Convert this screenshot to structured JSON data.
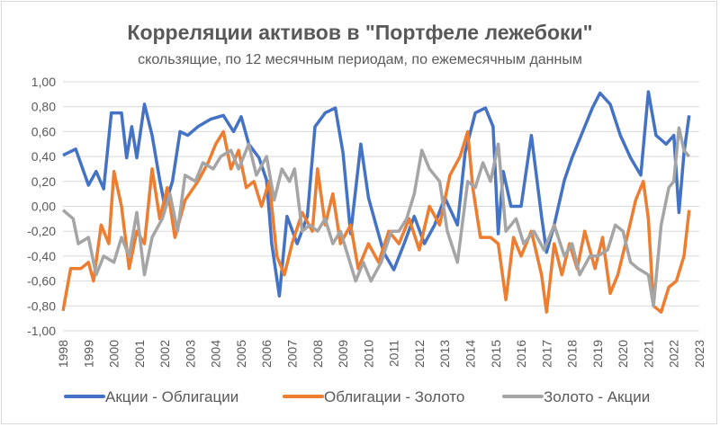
{
  "chart_data": {
    "type": "line",
    "title": "Корреляции активов в \"Портфеле лежебоки\"",
    "subtitle": "скользящие, по 12 месячным периодам, по ежемесячным данным",
    "xlabel": "",
    "ylabel": "",
    "ylim": [
      -1,
      1
    ],
    "xlim": [
      1998,
      2023
    ],
    "yticks": [
      "1,00",
      "0,80",
      "0,60",
      "0,40",
      "0,20",
      "0,00",
      "-0,20",
      "-0,40",
      "-0,60",
      "-0,80",
      "-1,00"
    ],
    "ytick_values": [
      1,
      0.8,
      0.6,
      0.4,
      0.2,
      0,
      -0.2,
      -0.4,
      -0.6,
      -0.8,
      -1
    ],
    "xticks": [
      "1998",
      "1999",
      "2000",
      "2001",
      "2002",
      "2003",
      "2004",
      "2005",
      "2006",
      "2007",
      "2008",
      "2009",
      "2010",
      "2011",
      "2012",
      "2013",
      "2014",
      "2015",
      "2016",
      "2017",
      "2018",
      "2019",
      "2020",
      "2021",
      "2022",
      "2023"
    ],
    "grid": true,
    "legend_position": "bottom",
    "series": [
      {
        "name": "Акции - Облигации",
        "color": "#4472c4",
        "points": [
          [
            1998.0,
            0.41
          ],
          [
            1998.5,
            0.46
          ],
          [
            1999.0,
            0.17
          ],
          [
            1999.3,
            0.28
          ],
          [
            1999.6,
            0.14
          ],
          [
            1999.9,
            0.75
          ],
          [
            2000.3,
            0.75
          ],
          [
            2000.5,
            0.39
          ],
          [
            2000.7,
            0.64
          ],
          [
            2000.9,
            0.39
          ],
          [
            2001.2,
            0.82
          ],
          [
            2001.5,
            0.57
          ],
          [
            2001.8,
            0.21
          ],
          [
            2002.0,
            0.0
          ],
          [
            2002.3,
            0.2
          ],
          [
            2002.6,
            0.6
          ],
          [
            2002.9,
            0.57
          ],
          [
            2003.3,
            0.64
          ],
          [
            2003.8,
            0.7
          ],
          [
            2004.3,
            0.73
          ],
          [
            2004.7,
            0.6
          ],
          [
            2005.0,
            0.72
          ],
          [
            2005.3,
            0.5
          ],
          [
            2005.7,
            0.39
          ],
          [
            2006.0,
            0.21
          ],
          [
            2006.2,
            -0.3
          ],
          [
            2006.5,
            -0.72
          ],
          [
            2006.8,
            -0.08
          ],
          [
            2007.2,
            -0.3
          ],
          [
            2007.6,
            -0.08
          ],
          [
            2007.9,
            0.64
          ],
          [
            2008.3,
            0.75
          ],
          [
            2008.7,
            0.79
          ],
          [
            2009.0,
            0.43
          ],
          [
            2009.3,
            -0.22
          ],
          [
            2009.7,
            0.5
          ],
          [
            2010.0,
            0.07
          ],
          [
            2010.3,
            -0.15
          ],
          [
            2010.6,
            -0.37
          ],
          [
            2011.0,
            -0.51
          ],
          [
            2011.4,
            -0.3
          ],
          [
            2011.8,
            -0.08
          ],
          [
            2012.2,
            -0.3
          ],
          [
            2012.6,
            -0.15
          ],
          [
            2013.0,
            0.07
          ],
          [
            2013.5,
            -0.15
          ],
          [
            2013.8,
            0.43
          ],
          [
            2014.2,
            0.75
          ],
          [
            2014.6,
            0.79
          ],
          [
            2014.9,
            0.64
          ],
          [
            2015.1,
            -0.22
          ],
          [
            2015.3,
            0.28
          ],
          [
            2015.6,
            0.0
          ],
          [
            2016.0,
            0.0
          ],
          [
            2016.4,
            0.57
          ],
          [
            2016.8,
            -0.08
          ],
          [
            2017.0,
            -0.37
          ],
          [
            2017.3,
            -0.15
          ],
          [
            2017.7,
            0.21
          ],
          [
            2018.0,
            0.39
          ],
          [
            2018.5,
            0.64
          ],
          [
            2018.8,
            0.79
          ],
          [
            2019.1,
            0.91
          ],
          [
            2019.5,
            0.82
          ],
          [
            2019.9,
            0.57
          ],
          [
            2020.3,
            0.39
          ],
          [
            2020.7,
            0.25
          ],
          [
            2021.0,
            0.92
          ],
          [
            2021.3,
            0.57
          ],
          [
            2021.7,
            0.5
          ],
          [
            2022.0,
            0.57
          ],
          [
            2022.2,
            -0.05
          ],
          [
            2022.4,
            0.43
          ],
          [
            2022.6,
            0.73
          ]
        ]
      },
      {
        "name": "Облигации - Золото",
        "color": "#ed7d31",
        "points": [
          [
            1998.0,
            -0.84
          ],
          [
            1998.3,
            -0.5
          ],
          [
            1998.7,
            -0.5
          ],
          [
            1999.0,
            -0.45
          ],
          [
            1999.2,
            -0.6
          ],
          [
            1999.5,
            -0.15
          ],
          [
            1999.8,
            -0.3
          ],
          [
            2000.0,
            0.28
          ],
          [
            2000.3,
            0.0
          ],
          [
            2000.6,
            -0.5
          ],
          [
            2000.9,
            -0.2
          ],
          [
            2001.2,
            -0.3
          ],
          [
            2001.5,
            0.3
          ],
          [
            2001.8,
            -0.1
          ],
          [
            2002.1,
            0.15
          ],
          [
            2002.4,
            -0.25
          ],
          [
            2002.8,
            0.05
          ],
          [
            2003.3,
            0.2
          ],
          [
            2003.7,
            0.35
          ],
          [
            2004.0,
            0.5
          ],
          [
            2004.3,
            0.6
          ],
          [
            2004.6,
            0.3
          ],
          [
            2004.9,
            0.45
          ],
          [
            2005.2,
            0.15
          ],
          [
            2005.5,
            0.2
          ],
          [
            2005.8,
            0.0
          ],
          [
            2006.1,
            0.2
          ],
          [
            2006.4,
            -0.4
          ],
          [
            2006.7,
            -0.55
          ],
          [
            2007.0,
            -0.3
          ],
          [
            2007.4,
            -0.05
          ],
          [
            2007.8,
            -0.2
          ],
          [
            2008.0,
            0.3
          ],
          [
            2008.3,
            -0.15
          ],
          [
            2008.6,
            0.1
          ],
          [
            2008.9,
            -0.3
          ],
          [
            2009.3,
            -0.15
          ],
          [
            2009.6,
            -0.5
          ],
          [
            2010.0,
            -0.3
          ],
          [
            2010.4,
            -0.45
          ],
          [
            2010.8,
            -0.2
          ],
          [
            2011.2,
            -0.3
          ],
          [
            2011.6,
            -0.1
          ],
          [
            2012.0,
            -0.35
          ],
          [
            2012.4,
            0.0
          ],
          [
            2012.8,
            -0.15
          ],
          [
            2013.2,
            0.25
          ],
          [
            2013.6,
            0.4
          ],
          [
            2013.9,
            0.6
          ],
          [
            2014.1,
            0.15
          ],
          [
            2014.4,
            -0.25
          ],
          [
            2014.8,
            -0.25
          ],
          [
            2015.1,
            -0.3
          ],
          [
            2015.4,
            -0.75
          ],
          [
            2015.7,
            -0.25
          ],
          [
            2016.0,
            -0.4
          ],
          [
            2016.4,
            -0.2
          ],
          [
            2016.8,
            -0.55
          ],
          [
            2017.0,
            -0.85
          ],
          [
            2017.3,
            -0.3
          ],
          [
            2017.6,
            -0.55
          ],
          [
            2017.9,
            -0.3
          ],
          [
            2018.2,
            -0.5
          ],
          [
            2018.5,
            -0.2
          ],
          [
            2018.9,
            -0.5
          ],
          [
            2019.2,
            -0.25
          ],
          [
            2019.5,
            -0.7
          ],
          [
            2019.8,
            -0.55
          ],
          [
            2020.1,
            -0.3
          ],
          [
            2020.5,
            0.05
          ],
          [
            2020.8,
            0.2
          ],
          [
            2021.0,
            -0.1
          ],
          [
            2021.2,
            -0.8
          ],
          [
            2021.5,
            -0.85
          ],
          [
            2021.8,
            -0.65
          ],
          [
            2022.1,
            -0.6
          ],
          [
            2022.4,
            -0.4
          ],
          [
            2022.6,
            -0.03
          ]
        ]
      },
      {
        "name": "Золото - Акции",
        "color": "#a5a5a5",
        "points": [
          [
            1998.0,
            -0.03
          ],
          [
            1998.4,
            -0.1
          ],
          [
            1998.6,
            -0.3
          ],
          [
            1999.0,
            -0.25
          ],
          [
            1999.3,
            -0.55
          ],
          [
            1999.6,
            -0.4
          ],
          [
            2000.0,
            -0.45
          ],
          [
            2000.3,
            -0.25
          ],
          [
            2000.6,
            -0.4
          ],
          [
            2000.9,
            -0.05
          ],
          [
            2001.2,
            -0.55
          ],
          [
            2001.5,
            -0.25
          ],
          [
            2001.9,
            -0.1
          ],
          [
            2002.2,
            0.1
          ],
          [
            2002.5,
            -0.2
          ],
          [
            2002.8,
            0.25
          ],
          [
            2003.2,
            0.2
          ],
          [
            2003.5,
            0.35
          ],
          [
            2003.9,
            0.3
          ],
          [
            2004.2,
            0.4
          ],
          [
            2004.6,
            0.45
          ],
          [
            2004.9,
            0.3
          ],
          [
            2005.3,
            0.5
          ],
          [
            2005.6,
            0.25
          ],
          [
            2006.0,
            0.4
          ],
          [
            2006.3,
            0.05
          ],
          [
            2006.6,
            0.3
          ],
          [
            2006.9,
            0.2
          ],
          [
            2007.1,
            0.3
          ],
          [
            2007.4,
            -0.2
          ],
          [
            2007.7,
            -0.15
          ],
          [
            2008.0,
            -0.2
          ],
          [
            2008.3,
            -0.1
          ],
          [
            2008.6,
            -0.3
          ],
          [
            2008.9,
            -0.2
          ],
          [
            2009.2,
            -0.4
          ],
          [
            2009.5,
            -0.6
          ],
          [
            2009.8,
            -0.45
          ],
          [
            2010.1,
            -0.6
          ],
          [
            2010.5,
            -0.45
          ],
          [
            2010.9,
            -0.2
          ],
          [
            2011.2,
            -0.2
          ],
          [
            2011.5,
            -0.1
          ],
          [
            2011.8,
            0.1
          ],
          [
            2012.1,
            0.45
          ],
          [
            2012.4,
            0.3
          ],
          [
            2012.8,
            0.2
          ],
          [
            2013.1,
            -0.2
          ],
          [
            2013.5,
            -0.45
          ],
          [
            2013.9,
            0.2
          ],
          [
            2014.2,
            0.15
          ],
          [
            2014.5,
            0.35
          ],
          [
            2014.8,
            0.2
          ],
          [
            2015.1,
            0.5
          ],
          [
            2015.4,
            -0.2
          ],
          [
            2015.8,
            -0.1
          ],
          [
            2016.1,
            -0.3
          ],
          [
            2016.5,
            -0.2
          ],
          [
            2016.9,
            -0.35
          ],
          [
            2017.3,
            -0.15
          ],
          [
            2017.7,
            -0.4
          ],
          [
            2018.0,
            -0.3
          ],
          [
            2018.3,
            -0.55
          ],
          [
            2018.7,
            -0.4
          ],
          [
            2019.0,
            -0.4
          ],
          [
            2019.4,
            -0.35
          ],
          [
            2019.7,
            -0.15
          ],
          [
            2020.0,
            -0.2
          ],
          [
            2020.3,
            -0.45
          ],
          [
            2020.6,
            -0.5
          ],
          [
            2021.0,
            -0.55
          ],
          [
            2021.2,
            -0.8
          ],
          [
            2021.5,
            -0.15
          ],
          [
            2021.8,
            0.15
          ],
          [
            2022.0,
            0.2
          ],
          [
            2022.2,
            0.63
          ],
          [
            2022.4,
            0.45
          ],
          [
            2022.6,
            0.4
          ]
        ]
      }
    ]
  }
}
